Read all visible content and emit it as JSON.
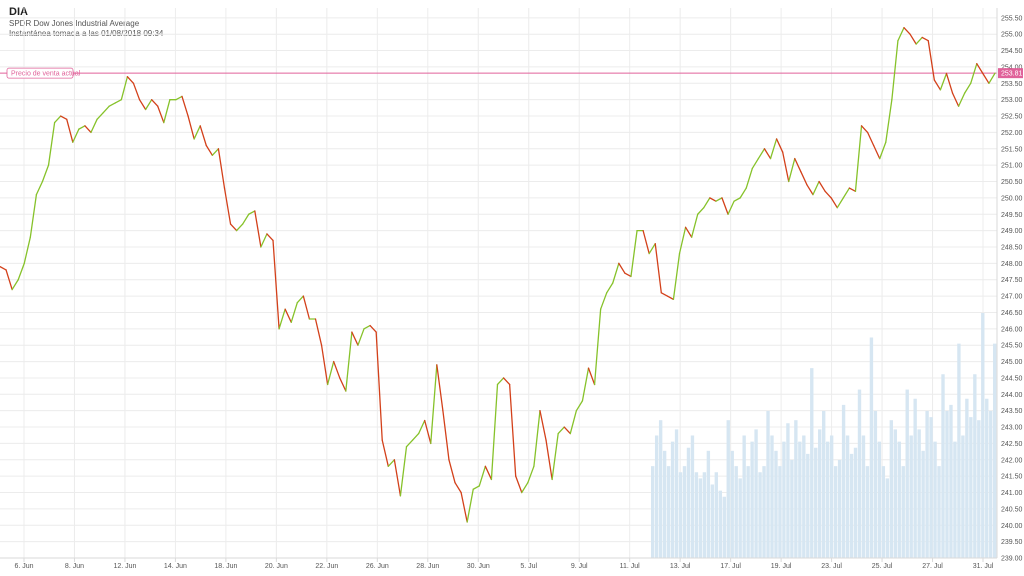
{
  "header": {
    "ticker": "DIA",
    "subtitle": "SPDR Dow Jones Industrial Average",
    "snapshot": "Instantánea tomada a las 01/08/2018 09:34"
  },
  "price_line": {
    "label": "Precio de venta actual",
    "value": 253.81,
    "value_text": "253.81",
    "color": "#e0629a"
  },
  "colors": {
    "up": "#86c22a",
    "down": "#d3401a",
    "volume": "#d6e6f2",
    "grid": "#ececec",
    "axis": "#dadada"
  },
  "chart_data": {
    "type": "line",
    "title": "",
    "ylim": [
      239,
      255.8
    ],
    "grid": true,
    "y_ticks": [
      "239.00",
      "239.50",
      "240.00",
      "240.50",
      "241.00",
      "241.50",
      "242.00",
      "242.50",
      "243.00",
      "243.50",
      "244.00",
      "244.50",
      "245.00",
      "245.50",
      "246.00",
      "246.50",
      "247.00",
      "247.50",
      "248.00",
      "248.50",
      "249.00",
      "249.50",
      "250.00",
      "250.50",
      "251.00",
      "251.50",
      "252.00",
      "252.50",
      "253.00",
      "253.50",
      "254.00",
      "254.50",
      "255.00",
      "255.50"
    ],
    "x_ticks": [
      "6. Jun",
      "8. Jun",
      "12. Jun",
      "14. Jun",
      "18. Jun",
      "20. Jun",
      "22. Jun",
      "26. Jun",
      "28. Jun",
      "30. Jun",
      "5. Jul",
      "9. Jul",
      "11. Jul",
      "13. Jul",
      "17. Jul",
      "19. Jul",
      "23. Jul",
      "25. Jul",
      "27. Jul",
      "31. Jul"
    ],
    "series": [
      {
        "values": [
          247.9,
          247.8,
          247.2,
          247.5,
          248,
          248.8,
          250.1,
          250.5,
          251,
          252.3,
          252.5,
          252.4,
          251.7,
          252.1,
          252.2,
          252,
          252.4,
          252.6,
          252.8,
          252.9,
          253,
          253.7,
          253.5,
          253,
          252.7,
          253,
          252.8,
          252.3,
          253,
          253,
          253.1,
          252.5,
          251.8,
          252.2,
          251.6,
          251.3,
          251.5,
          250.3,
          249.2,
          249,
          249.2,
          249.5,
          249.6,
          248.5,
          248.9,
          248.7,
          246,
          246.6,
          246.2,
          246.8,
          247,
          246.3,
          246.3,
          245.5,
          244.3,
          245,
          244.5,
          244.1,
          245.9,
          245.5,
          246,
          246.1,
          245.9,
          242.6,
          241.8,
          242,
          240.9,
          242.4,
          242.6,
          242.8,
          243.2,
          242.5,
          244.9,
          243.5,
          242,
          241.3,
          241,
          240.1,
          241.1,
          241.2,
          241.8,
          241.4,
          244.3,
          244.5,
          244.3,
          241.5,
          241,
          241.3,
          241.8,
          243.5,
          242.6,
          241.4,
          242.8,
          243,
          242.8,
          243.5,
          243.8,
          244.8,
          244.3,
          246.6,
          247.1,
          247.4,
          248,
          247.7,
          247.6,
          249,
          249,
          248.3,
          248.6,
          247.1,
          247,
          246.9,
          248.3,
          249.1,
          248.8,
          249.5,
          249.7,
          250,
          249.9,
          250,
          249.5,
          249.9,
          250,
          250.3,
          250.9,
          251.2,
          251.5,
          251.2,
          251.8,
          251.4,
          250.5,
          251.2,
          250.8,
          250.4,
          250.1,
          250.5,
          250.2,
          250,
          249.7,
          250,
          250.3,
          250.2,
          252.2,
          252,
          251.6,
          251.2,
          251.7,
          253,
          254.8,
          255.2,
          255,
          254.7,
          254.9,
          254.8,
          253.6,
          253.3,
          253.8,
          253.2,
          252.8,
          253.2,
          253.5,
          254.1,
          253.8,
          253.5,
          253.81
        ]
      }
    ],
    "volume": {
      "values": [
        30,
        40,
        45,
        35,
        30,
        38,
        42,
        28,
        30,
        36,
        40,
        28,
        26,
        28,
        35,
        24,
        28,
        22,
        20,
        45,
        35,
        30,
        26,
        40,
        30,
        38,
        42,
        28,
        30,
        48,
        40,
        35,
        30,
        38,
        44,
        32,
        45,
        38,
        40,
        34,
        62,
        36,
        42,
        48,
        38,
        40,
        30,
        32,
        50,
        40,
        34,
        36,
        55,
        40,
        30,
        72,
        48,
        38,
        30,
        26,
        45,
        42,
        38,
        30,
        55,
        40,
        52,
        42,
        35,
        48,
        46,
        38,
        30,
        60,
        48,
        50,
        38,
        70,
        40,
        52,
        46,
        60,
        45,
        80,
        52,
        48,
        70
      ]
    }
  }
}
